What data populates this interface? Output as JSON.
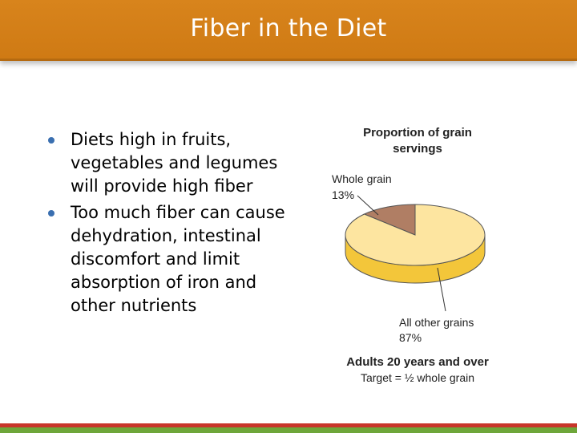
{
  "slide": {
    "title": "Fiber in the Diet",
    "bullets": [
      "Diets high in fruits, vegetables and legumes will provide high fiber",
      "Too much fiber can cause dehydration, intestinal discomfort and limit absorption of iron and other nutrients"
    ]
  },
  "chart_data": {
    "type": "pie",
    "title_lines": [
      "Proportion of grain",
      "servings"
    ],
    "slices": [
      {
        "label": "Whole grain",
        "value": 13,
        "value_label": "13%",
        "color": "#b07e64"
      },
      {
        "label": "All other grains",
        "value": 87,
        "value_label": "87%",
        "color": "#fde5a0"
      }
    ],
    "caption_lines": [
      "Adults 20 years and over",
      "Target = ½ whole grain"
    ],
    "style": "3d"
  },
  "colors": {
    "title_bar": "#d8841c",
    "bullet_dot": "#3a6fb0",
    "footer_red": "#c8352a",
    "footer_green": "#6ea63a",
    "pie_side": "#f3c63a"
  }
}
